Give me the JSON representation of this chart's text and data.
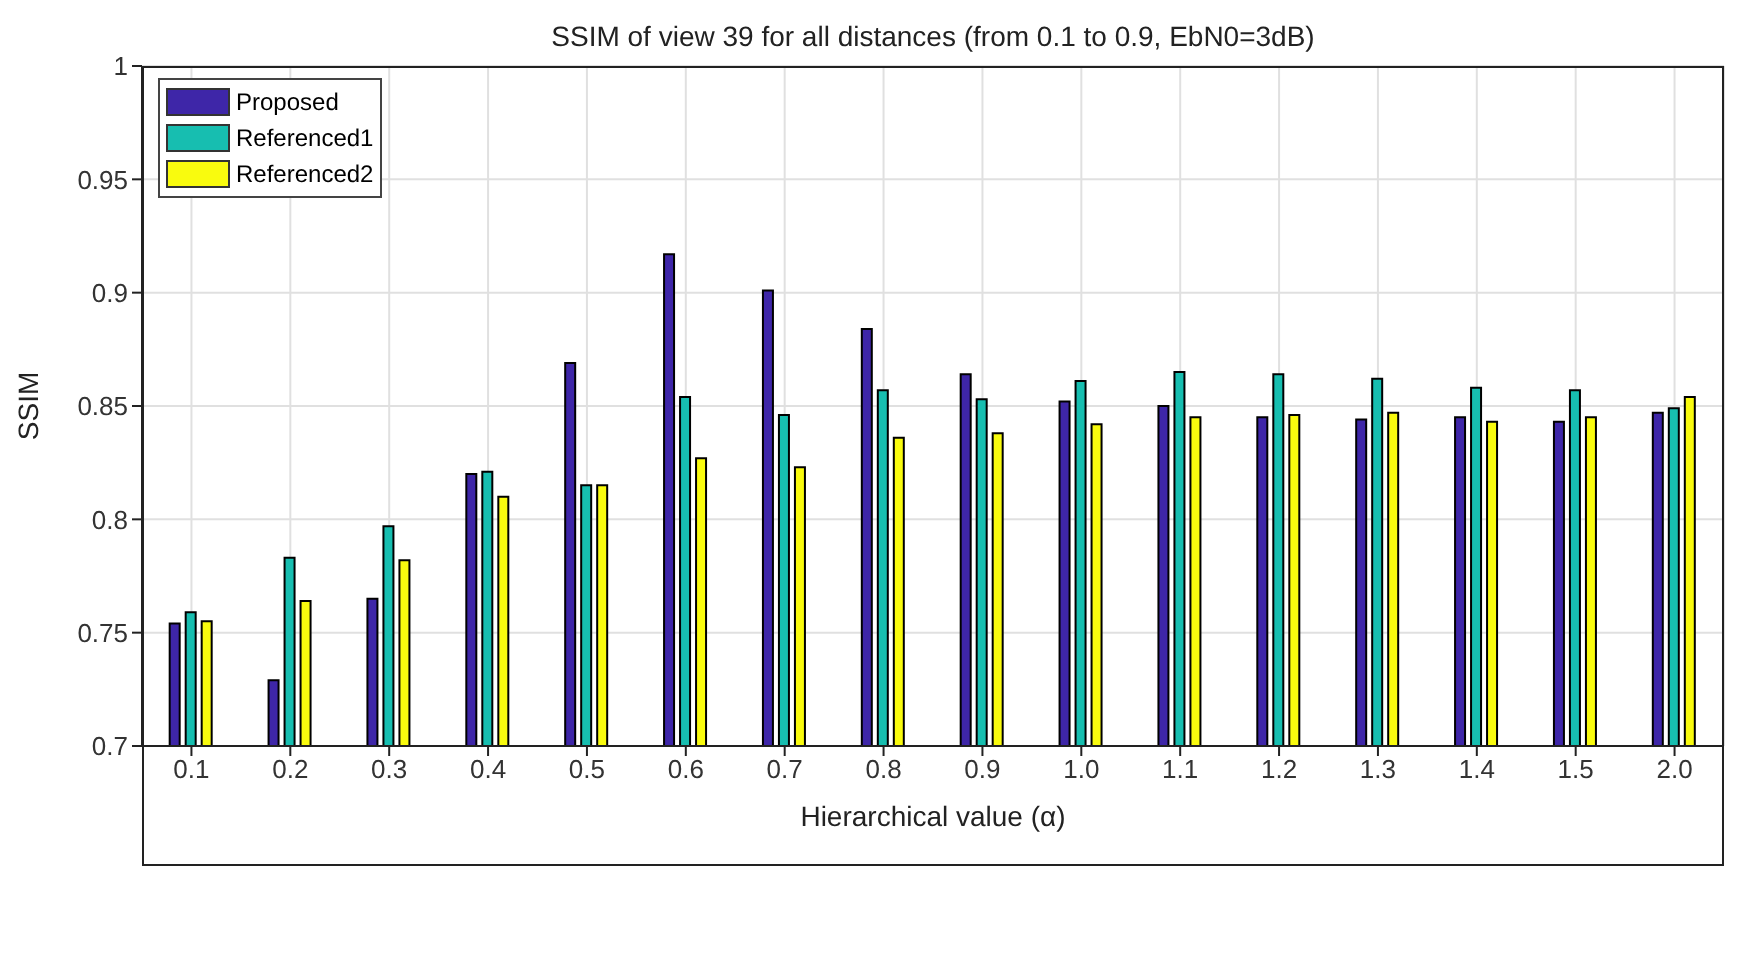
{
  "chart_data": {
    "type": "bar",
    "title": "SSIM of view 39 for all distances (from 0.1 to 0.9, EbN0=3dB)",
    "xlabel": "Hierarchical value (α)",
    "ylabel": "SSIM",
    "categories": [
      "0.1",
      "0.2",
      "0.3",
      "0.4",
      "0.5",
      "0.6",
      "0.7",
      "0.8",
      "0.9",
      "1.0",
      "1.1",
      "1.2",
      "1.3",
      "1.4",
      "1.5",
      "2.0"
    ],
    "series": [
      {
        "name": "Proposed",
        "color": "#3e26a8",
        "values": [
          0.754,
          0.729,
          0.765,
          0.82,
          0.869,
          0.917,
          0.901,
          0.884,
          0.864,
          0.852,
          0.85,
          0.845,
          0.844,
          0.845,
          0.843,
          0.847
        ]
      },
      {
        "name": "Referenced1",
        "color": "#17beb0",
        "values": [
          0.759,
          0.783,
          0.797,
          0.821,
          0.815,
          0.854,
          0.846,
          0.857,
          0.853,
          0.861,
          0.865,
          0.864,
          0.862,
          0.858,
          0.857,
          0.849
        ]
      },
      {
        "name": "Referenced2",
        "color": "#f9fb0e",
        "values": [
          0.755,
          0.764,
          0.782,
          0.81,
          0.815,
          0.827,
          0.823,
          0.836,
          0.838,
          0.842,
          0.845,
          0.846,
          0.847,
          0.843,
          0.845,
          0.854
        ]
      }
    ],
    "ylim": [
      0.7,
      1
    ],
    "yticks": [
      0.7,
      0.75,
      0.8,
      0.85,
      0.9,
      0.95,
      1
    ],
    "grid": true,
    "legend": "top left"
  }
}
